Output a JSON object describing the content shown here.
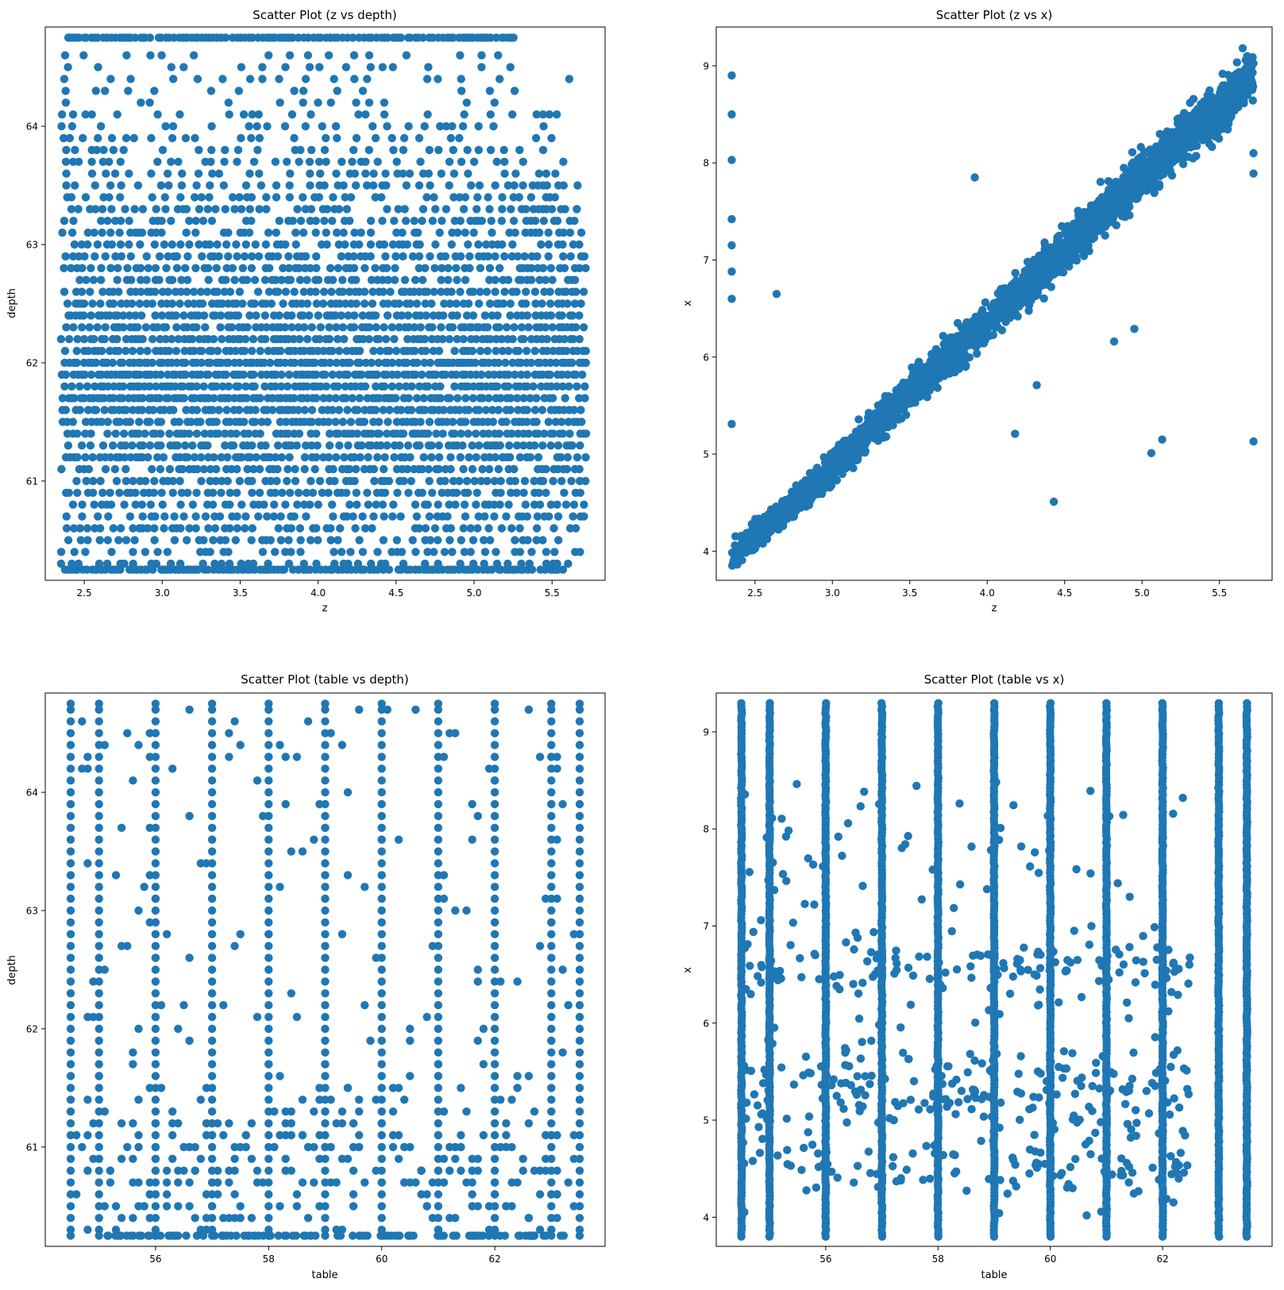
{
  "chart_data": [
    {
      "type": "scatter",
      "title": "Scatter Plot (z vs depth)",
      "xlabel": "z",
      "ylabel": "depth",
      "xlim": [
        2.25,
        5.84
      ],
      "ylim": [
        60.16,
        64.84
      ],
      "xticks": [
        "2.5",
        "3.0",
        "3.5",
        "4.0",
        "4.5",
        "5.0",
        "5.5"
      ],
      "yticks": [
        "61",
        "62",
        "63",
        "64"
      ],
      "color": "#1f77b4",
      "grid": false,
      "x_range": [
        2.35,
        5.72
      ],
      "depth_levels": [
        60.25,
        60.3,
        60.4,
        60.5,
        60.6,
        60.7,
        60.8,
        60.9,
        61.0,
        61.1,
        61.2,
        61.3,
        61.4,
        61.5,
        61.6,
        61.7,
        61.8,
        61.9,
        62.0,
        62.1,
        62.2,
        62.3,
        62.4,
        62.5,
        62.6,
        62.7,
        62.8,
        62.9,
        63.0,
        63.1,
        63.2,
        63.3,
        63.4,
        63.5,
        63.6,
        63.7,
        63.8,
        63.9,
        64.0,
        64.1,
        64.2,
        64.3,
        64.4,
        64.5,
        64.6,
        64.75
      ],
      "notes_visible": "dense horizontal bands at every 0.1 depth level; clipped rows at 60.25 and 64.75"
    },
    {
      "type": "scatter",
      "title": "Scatter Plot (z vs x)",
      "xlabel": "z",
      "ylabel": "x",
      "xlim": [
        2.25,
        5.84
      ],
      "ylim": [
        3.7,
        9.4
      ],
      "xticks": [
        "2.5",
        "3.0",
        "3.5",
        "4.0",
        "4.5",
        "5.0",
        "5.5"
      ],
      "yticks": [
        "4",
        "5",
        "6",
        "7",
        "8",
        "9"
      ],
      "color": "#1f77b4",
      "grid": false,
      "trend": {
        "z": [
          2.35,
          3.0,
          3.5,
          4.0,
          4.5,
          5.0,
          5.5,
          5.72
        ],
        "x": [
          3.95,
          4.85,
          5.65,
          6.35,
          7.1,
          7.9,
          8.55,
          8.95
        ]
      },
      "outliers": [
        {
          "x": 2.35,
          "y": 8.9
        },
        {
          "x": 2.35,
          "y": 8.5
        },
        {
          "x": 2.35,
          "y": 8.03
        },
        {
          "x": 2.35,
          "y": 7.42
        },
        {
          "x": 2.35,
          "y": 7.15
        },
        {
          "x": 2.35,
          "y": 6.88
        },
        {
          "x": 2.35,
          "y": 6.6
        },
        {
          "x": 2.35,
          "y": 5.31
        },
        {
          "x": 2.64,
          "y": 6.65
        },
        {
          "x": 3.92,
          "y": 7.85
        },
        {
          "x": 4.43,
          "y": 4.51
        },
        {
          "x": 4.32,
          "y": 5.71
        },
        {
          "x": 4.18,
          "y": 5.21
        },
        {
          "x": 5.06,
          "y": 5.01
        },
        {
          "x": 5.13,
          "y": 5.15
        },
        {
          "x": 5.72,
          "y": 5.13
        },
        {
          "x": 4.95,
          "y": 6.29
        },
        {
          "x": 4.82,
          "y": 6.16
        },
        {
          "x": 5.72,
          "y": 7.89
        },
        {
          "x": 5.72,
          "y": 8.1
        }
      ]
    },
    {
      "type": "scatter",
      "title": "Scatter Plot (table vs depth)",
      "xlabel": "table",
      "ylabel": "depth",
      "xlim": [
        54.05,
        63.95
      ],
      "ylim": [
        60.16,
        64.84
      ],
      "xticks": [
        "56",
        "58",
        "60",
        "62"
      ],
      "yticks": [
        "61",
        "62",
        "63",
        "64"
      ],
      "color": "#1f77b4",
      "grid": false,
      "table_columns": [
        54.5,
        55,
        56,
        57,
        58,
        59,
        60,
        61,
        62,
        63,
        63.5
      ]
    },
    {
      "type": "scatter",
      "title": "Scatter Plot (table vs x)",
      "xlabel": "table",
      "ylabel": "x",
      "xlim": [
        54.05,
        63.95
      ],
      "ylim": [
        3.7,
        9.4
      ],
      "xticks": [
        "56",
        "58",
        "60",
        "62"
      ],
      "yticks": [
        "4",
        "5",
        "6",
        "7",
        "8",
        "9"
      ],
      "color": "#1f77b4",
      "grid": false,
      "table_columns": [
        54.5,
        55,
        56,
        57,
        58,
        59,
        60,
        61,
        62,
        63,
        63.5
      ],
      "x_range": [
        3.8,
        9.3
      ]
    }
  ]
}
